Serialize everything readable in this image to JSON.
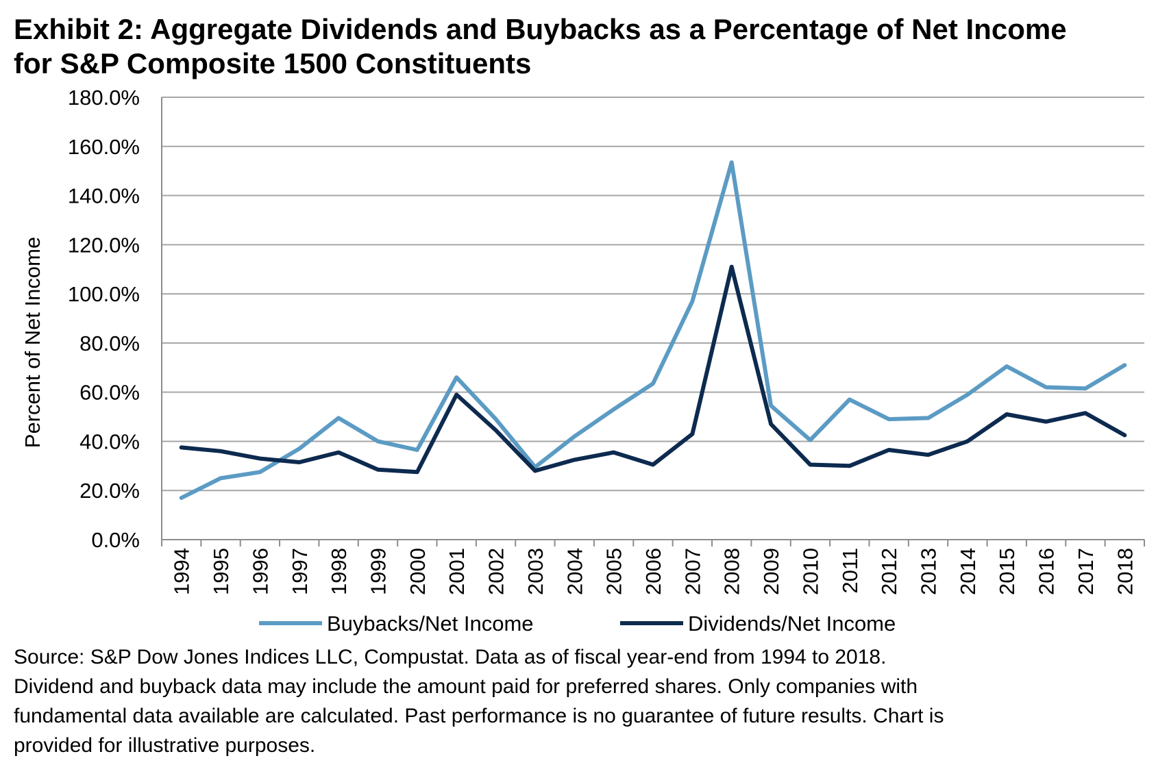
{
  "title": {
    "line1": "Exhibit 2: Aggregate Dividends and Buybacks as a Percentage of Net Income",
    "line2": "for S&P Composite 1500 Constituents"
  },
  "chart_data": {
    "type": "line",
    "title": "Exhibit 2: Aggregate Dividends and Buybacks as a Percentage of Net Income for S&P Composite 1500 Constituents",
    "xlabel": "",
    "ylabel": "Percent of Net Income",
    "ylim": [
      0,
      180
    ],
    "yticks": [
      0,
      20,
      40,
      60,
      80,
      100,
      120,
      140,
      160,
      180
    ],
    "ytick_labels": [
      "0.0%",
      "20.0%",
      "40.0%",
      "60.0%",
      "80.0%",
      "100.0%",
      "120.0%",
      "140.0%",
      "160.0%",
      "180.0%"
    ],
    "grid": true,
    "legend_position": "bottom",
    "categories": [
      "1994",
      "1995",
      "1996",
      "1997",
      "1998",
      "1999",
      "2000",
      "2001",
      "2002",
      "2003",
      "2004",
      "2005",
      "2006",
      "2007",
      "2008",
      "2009",
      "2010",
      "2011",
      "2012",
      "2013",
      "2014",
      "2015",
      "2016",
      "2017",
      "2018"
    ],
    "series": [
      {
        "name": "Buybacks/Net Income",
        "color": "#5b9bc4",
        "values": [
          17.0,
          25.0,
          27.5,
          37.0,
          49.5,
          40.0,
          36.5,
          66.0,
          49.0,
          29.5,
          42.0,
          53.0,
          63.5,
          97.0,
          153.5,
          54.5,
          40.5,
          57.0,
          49.0,
          49.5,
          59.0,
          70.5,
          62.0,
          61.5,
          71.0
        ]
      },
      {
        "name": "Dividends/Net Income",
        "color": "#0d2a4f",
        "values": [
          37.5,
          36.0,
          33.0,
          31.5,
          35.5,
          28.5,
          27.5,
          59.0,
          44.5,
          28.0,
          32.5,
          35.5,
          30.5,
          43.0,
          111.0,
          47.0,
          30.5,
          30.0,
          36.5,
          34.5,
          40.0,
          51.0,
          48.0,
          51.5,
          42.5
        ]
      }
    ]
  },
  "source_note": {
    "line1": "Source: S&P Dow Jones Indices LLC, Compustat.  Data as of fiscal year-end from 1994 to 2018.",
    "line2": "Dividend and buyback data may include the amount paid for preferred shares.  Only companies with",
    "line3": "fundamental data available are calculated.  Past performance is no guarantee of future results.  Chart is",
    "line4": "provided for illustrative purposes."
  }
}
